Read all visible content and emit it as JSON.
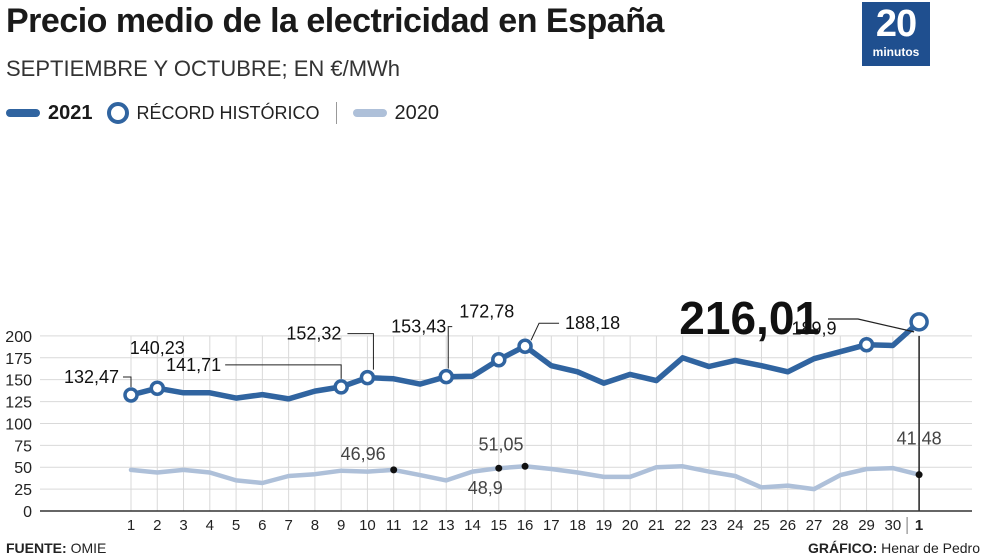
{
  "header": {
    "title": "Precio medio de la electricidad en España",
    "subtitle": "SEPTIEMBRE Y OCTUBRE; EN €/MWh"
  },
  "logo": {
    "number": "20",
    "word": "minutos"
  },
  "legend": {
    "series_2021": "2021",
    "record": "RÉCORD HISTÓRICO",
    "series_2020": "2020"
  },
  "footer": {
    "source_label": "FUENTE:",
    "source_value": "OMIE",
    "credit_label": "GRÁFICO:",
    "credit_value": "Henar de Pedro"
  },
  "colors": {
    "series_2021": "#3064a0",
    "series_2020": "#aec0d9",
    "grid": "#d9d9d9",
    "axis": "#333333"
  },
  "chart_data": {
    "type": "line",
    "title": "Precio medio de la electricidad en España",
    "subtitle": "SEPTIEMBRE Y OCTUBRE; EN €/MWh",
    "x": [
      "1",
      "2",
      "3",
      "4",
      "5",
      "6",
      "7",
      "8",
      "9",
      "10",
      "11",
      "12",
      "13",
      "14",
      "15",
      "16",
      "17",
      "18",
      "19",
      "20",
      "21",
      "22",
      "23",
      "24",
      "25",
      "26",
      "27",
      "28",
      "29",
      "30",
      "1"
    ],
    "x_emphasized_last": true,
    "ylim": [
      0,
      200
    ],
    "yticks": [
      0,
      25,
      50,
      75,
      100,
      125,
      150,
      175,
      200
    ],
    "grid": true,
    "legend_position": "top-left",
    "series": [
      {
        "name": "2021",
        "values": [
          132.47,
          140.23,
          135,
          135,
          129,
          133,
          128,
          137,
          141.71,
          152.32,
          151,
          145,
          153.43,
          154,
          172.78,
          188.18,
          166,
          159,
          146,
          156,
          149,
          175,
          165,
          172,
          166,
          159,
          174,
          182,
          189.9,
          189,
          216.01
        ],
        "record_points": [
          0,
          1,
          8,
          9,
          12,
          14,
          15,
          28,
          30
        ]
      },
      {
        "name": "2020",
        "values": [
          47,
          44,
          47,
          44,
          35,
          32,
          40,
          42,
          46,
          45,
          46.96,
          41,
          35,
          45,
          48.9,
          51.05,
          48,
          44,
          39,
          39,
          50,
          51,
          45,
          40,
          27,
          29,
          25,
          41,
          48,
          49,
          41.48
        ],
        "marked_points": [
          10,
          14,
          15,
          30
        ]
      }
    ],
    "annotations": [
      {
        "text": "132,47",
        "series": 0,
        "point": 0
      },
      {
        "text": "140,23",
        "series": 0,
        "point": 1
      },
      {
        "text": "141,71",
        "series": 0,
        "point": 8
      },
      {
        "text": "152,32",
        "series": 0,
        "point": 9
      },
      {
        "text": "153,43",
        "series": 0,
        "point": 12
      },
      {
        "text": "172,78",
        "series": 0,
        "point": 14
      },
      {
        "text": "188,18",
        "series": 0,
        "point": 15
      },
      {
        "text": "189,9",
        "series": 0,
        "point": 28
      },
      {
        "text": "216,01",
        "series": 0,
        "point": 30
      },
      {
        "text": "46,96",
        "series": 1,
        "point": 10
      },
      {
        "text": "48,9",
        "series": 1,
        "point": 14
      },
      {
        "text": "51,05",
        "series": 1,
        "point": 15
      },
      {
        "text": "41,48",
        "series": 1,
        "point": 30
      }
    ]
  }
}
